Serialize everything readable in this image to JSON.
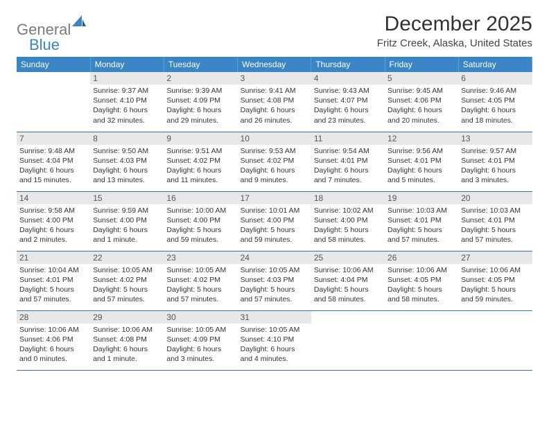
{
  "brand": {
    "part1": "General",
    "part2": "Blue"
  },
  "title": "December 2025",
  "location": "Fritz Creek, Alaska, United States",
  "theme": {
    "header_bg": "#3a85c6",
    "header_text": "#ffffff",
    "daynum_bg": "#e8e8e8",
    "daynum_text": "#555555",
    "row_border": "#3a6ea5",
    "body_text": "#333333",
    "font_family": "Arial, Helvetica, sans-serif"
  },
  "weekdays": [
    "Sunday",
    "Monday",
    "Tuesday",
    "Wednesday",
    "Thursday",
    "Friday",
    "Saturday"
  ],
  "weeks": [
    [
      null,
      {
        "n": "1",
        "sr": "9:37 AM",
        "ss": "4:10 PM",
        "dl": "6 hours and 32 minutes."
      },
      {
        "n": "2",
        "sr": "9:39 AM",
        "ss": "4:09 PM",
        "dl": "6 hours and 29 minutes."
      },
      {
        "n": "3",
        "sr": "9:41 AM",
        "ss": "4:08 PM",
        "dl": "6 hours and 26 minutes."
      },
      {
        "n": "4",
        "sr": "9:43 AM",
        "ss": "4:07 PM",
        "dl": "6 hours and 23 minutes."
      },
      {
        "n": "5",
        "sr": "9:45 AM",
        "ss": "4:06 PM",
        "dl": "6 hours and 20 minutes."
      },
      {
        "n": "6",
        "sr": "9:46 AM",
        "ss": "4:05 PM",
        "dl": "6 hours and 18 minutes."
      }
    ],
    [
      {
        "n": "7",
        "sr": "9:48 AM",
        "ss": "4:04 PM",
        "dl": "6 hours and 15 minutes."
      },
      {
        "n": "8",
        "sr": "9:50 AM",
        "ss": "4:03 PM",
        "dl": "6 hours and 13 minutes."
      },
      {
        "n": "9",
        "sr": "9:51 AM",
        "ss": "4:02 PM",
        "dl": "6 hours and 11 minutes."
      },
      {
        "n": "10",
        "sr": "9:53 AM",
        "ss": "4:02 PM",
        "dl": "6 hours and 9 minutes."
      },
      {
        "n": "11",
        "sr": "9:54 AM",
        "ss": "4:01 PM",
        "dl": "6 hours and 7 minutes."
      },
      {
        "n": "12",
        "sr": "9:56 AM",
        "ss": "4:01 PM",
        "dl": "6 hours and 5 minutes."
      },
      {
        "n": "13",
        "sr": "9:57 AM",
        "ss": "4:01 PM",
        "dl": "6 hours and 3 minutes."
      }
    ],
    [
      {
        "n": "14",
        "sr": "9:58 AM",
        "ss": "4:00 PM",
        "dl": "6 hours and 2 minutes."
      },
      {
        "n": "15",
        "sr": "9:59 AM",
        "ss": "4:00 PM",
        "dl": "6 hours and 1 minute."
      },
      {
        "n": "16",
        "sr": "10:00 AM",
        "ss": "4:00 PM",
        "dl": "5 hours and 59 minutes."
      },
      {
        "n": "17",
        "sr": "10:01 AM",
        "ss": "4:00 PM",
        "dl": "5 hours and 59 minutes."
      },
      {
        "n": "18",
        "sr": "10:02 AM",
        "ss": "4:00 PM",
        "dl": "5 hours and 58 minutes."
      },
      {
        "n": "19",
        "sr": "10:03 AM",
        "ss": "4:01 PM",
        "dl": "5 hours and 57 minutes."
      },
      {
        "n": "20",
        "sr": "10:03 AM",
        "ss": "4:01 PM",
        "dl": "5 hours and 57 minutes."
      }
    ],
    [
      {
        "n": "21",
        "sr": "10:04 AM",
        "ss": "4:01 PM",
        "dl": "5 hours and 57 minutes."
      },
      {
        "n": "22",
        "sr": "10:05 AM",
        "ss": "4:02 PM",
        "dl": "5 hours and 57 minutes."
      },
      {
        "n": "23",
        "sr": "10:05 AM",
        "ss": "4:02 PM",
        "dl": "5 hours and 57 minutes."
      },
      {
        "n": "24",
        "sr": "10:05 AM",
        "ss": "4:03 PM",
        "dl": "5 hours and 57 minutes."
      },
      {
        "n": "25",
        "sr": "10:06 AM",
        "ss": "4:04 PM",
        "dl": "5 hours and 58 minutes."
      },
      {
        "n": "26",
        "sr": "10:06 AM",
        "ss": "4:05 PM",
        "dl": "5 hours and 58 minutes."
      },
      {
        "n": "27",
        "sr": "10:06 AM",
        "ss": "4:05 PM",
        "dl": "5 hours and 59 minutes."
      }
    ],
    [
      {
        "n": "28",
        "sr": "10:06 AM",
        "ss": "4:06 PM",
        "dl": "6 hours and 0 minutes."
      },
      {
        "n": "29",
        "sr": "10:06 AM",
        "ss": "4:08 PM",
        "dl": "6 hours and 1 minute."
      },
      {
        "n": "30",
        "sr": "10:05 AM",
        "ss": "4:09 PM",
        "dl": "6 hours and 3 minutes."
      },
      {
        "n": "31",
        "sr": "10:05 AM",
        "ss": "4:10 PM",
        "dl": "6 hours and 4 minutes."
      },
      null,
      null,
      null
    ]
  ],
  "labels": {
    "sunrise": "Sunrise:",
    "sunset": "Sunset:",
    "daylight": "Daylight:"
  }
}
